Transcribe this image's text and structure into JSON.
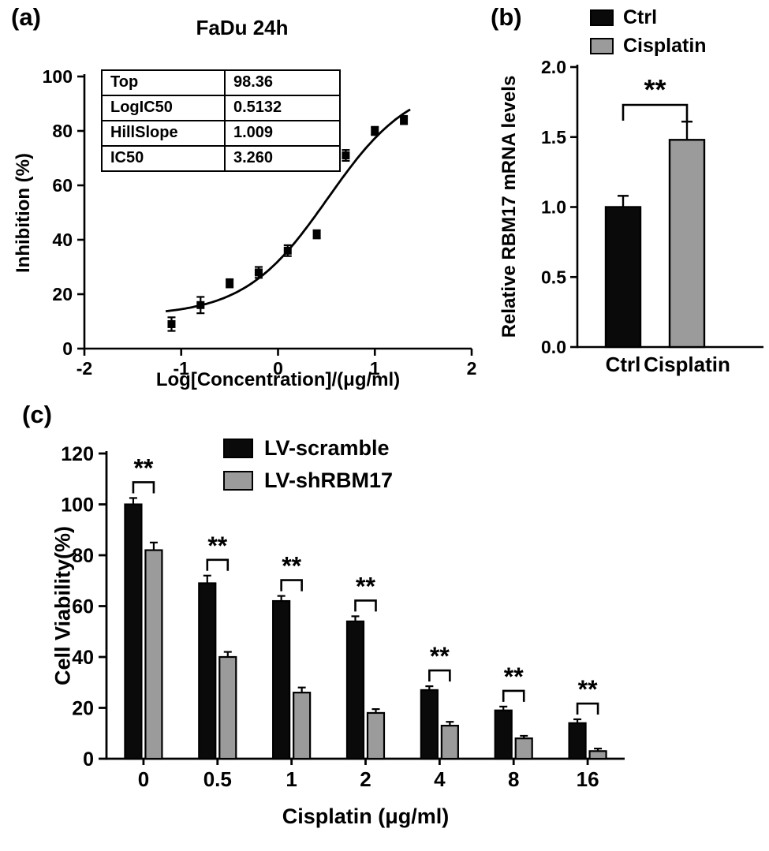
{
  "colors": {
    "black": "#0a0a0a",
    "gray": "#9b9b9b"
  },
  "panels": {
    "a": {
      "label": "(a)",
      "title": "FaDu 24h",
      "xlabel": "Log[Concentration]/(μg/ml)",
      "ylabel": "Inhibition (%)"
    },
    "b": {
      "label": "(b)",
      "ylabel": "Relative RBM17 mRNA levels",
      "legend": [
        "Ctrl",
        "Cisplatin"
      ],
      "significance": "**"
    },
    "c": {
      "label": "(c)",
      "xlabel": "Cisplatin (μg/ml)",
      "ylabel": "Cell Viability(%)",
      "legend": [
        "LV-scramble",
        "LV-shRBM17"
      ],
      "significance": "**"
    }
  },
  "chart_data": [
    {
      "id": "dose-response",
      "type": "scatter",
      "title": "FaDu 24h",
      "xlabel": "Log[Concentration]/(μg/ml)",
      "ylabel": "Inhibition (%)",
      "xlim": [
        -2,
        2
      ],
      "ylim": [
        0,
        100
      ],
      "xticks": [
        -2,
        -1,
        0,
        1,
        2
      ],
      "yticks": [
        0,
        20,
        40,
        60,
        80,
        100
      ],
      "grid": false,
      "points": [
        {
          "x": -1.1,
          "y": 9,
          "err": 2.5
        },
        {
          "x": -0.8,
          "y": 16,
          "err": 3
        },
        {
          "x": -0.5,
          "y": 24,
          "err": 1.5
        },
        {
          "x": -0.2,
          "y": 28,
          "err": 2
        },
        {
          "x": 0.1,
          "y": 36,
          "err": 2
        },
        {
          "x": 0.4,
          "y": 42,
          "err": 1.5
        },
        {
          "x": 0.7,
          "y": 71,
          "err": 2
        },
        {
          "x": 1.0,
          "y": 80,
          "err": 1.5
        },
        {
          "x": 1.3,
          "y": 84,
          "err": 1.5
        }
      ],
      "fit": {
        "top": 98.36,
        "logIC50": 0.5132,
        "hillSlope": 1.009,
        "IC50": 3.26,
        "bottom_est": 12
      },
      "table_rows": [
        [
          "Top",
          "98.36"
        ],
        [
          "LogIC50",
          "0.5132"
        ],
        [
          "HillSlope",
          "1.009"
        ],
        [
          "IC50",
          "3.260"
        ]
      ]
    },
    {
      "id": "rbm17-mrna",
      "type": "bar",
      "ylabel": "Relative RBM17 mRNA levels",
      "ylim": [
        0,
        2
      ],
      "yticks": [
        0,
        0.5,
        1,
        1.5,
        2
      ],
      "ytick_labels": [
        "0.0",
        "0.5",
        "1.0",
        "1.5",
        "2.0"
      ],
      "categories": [
        "Ctrl",
        "Cisplatin"
      ],
      "values": [
        1.0,
        1.48
      ],
      "errors": [
        0.08,
        0.13
      ],
      "bar_colors": [
        "black",
        "gray"
      ],
      "legend": [
        "Ctrl",
        "Cisplatin"
      ],
      "legend_position": "top",
      "significance": "**"
    },
    {
      "id": "cell-viability",
      "type": "bar",
      "xlabel": "Cisplatin (μg/ml)",
      "ylabel": "Cell Viability(%)",
      "ylim": [
        0,
        120
      ],
      "yticks": [
        0,
        20,
        40,
        60,
        80,
        100,
        120
      ],
      "categories": [
        "0",
        "0.5",
        "1",
        "2",
        "4",
        "8",
        "16"
      ],
      "series": [
        {
          "name": "LV-scramble",
          "color": "black",
          "values": [
            100,
            69,
            62,
            54,
            27,
            19,
            14
          ],
          "errors": [
            2.5,
            3,
            2,
            2,
            1.5,
            1.5,
            1.5
          ]
        },
        {
          "name": "LV-shRBM17",
          "color": "gray",
          "values": [
            82,
            40,
            26,
            18,
            13,
            8,
            3
          ],
          "errors": [
            3,
            2,
            2,
            1.5,
            1.5,
            1,
            1
          ]
        }
      ],
      "legend_position": "top",
      "significance": [
        "**",
        "**",
        "**",
        "**",
        "**",
        "**",
        "**"
      ]
    }
  ]
}
